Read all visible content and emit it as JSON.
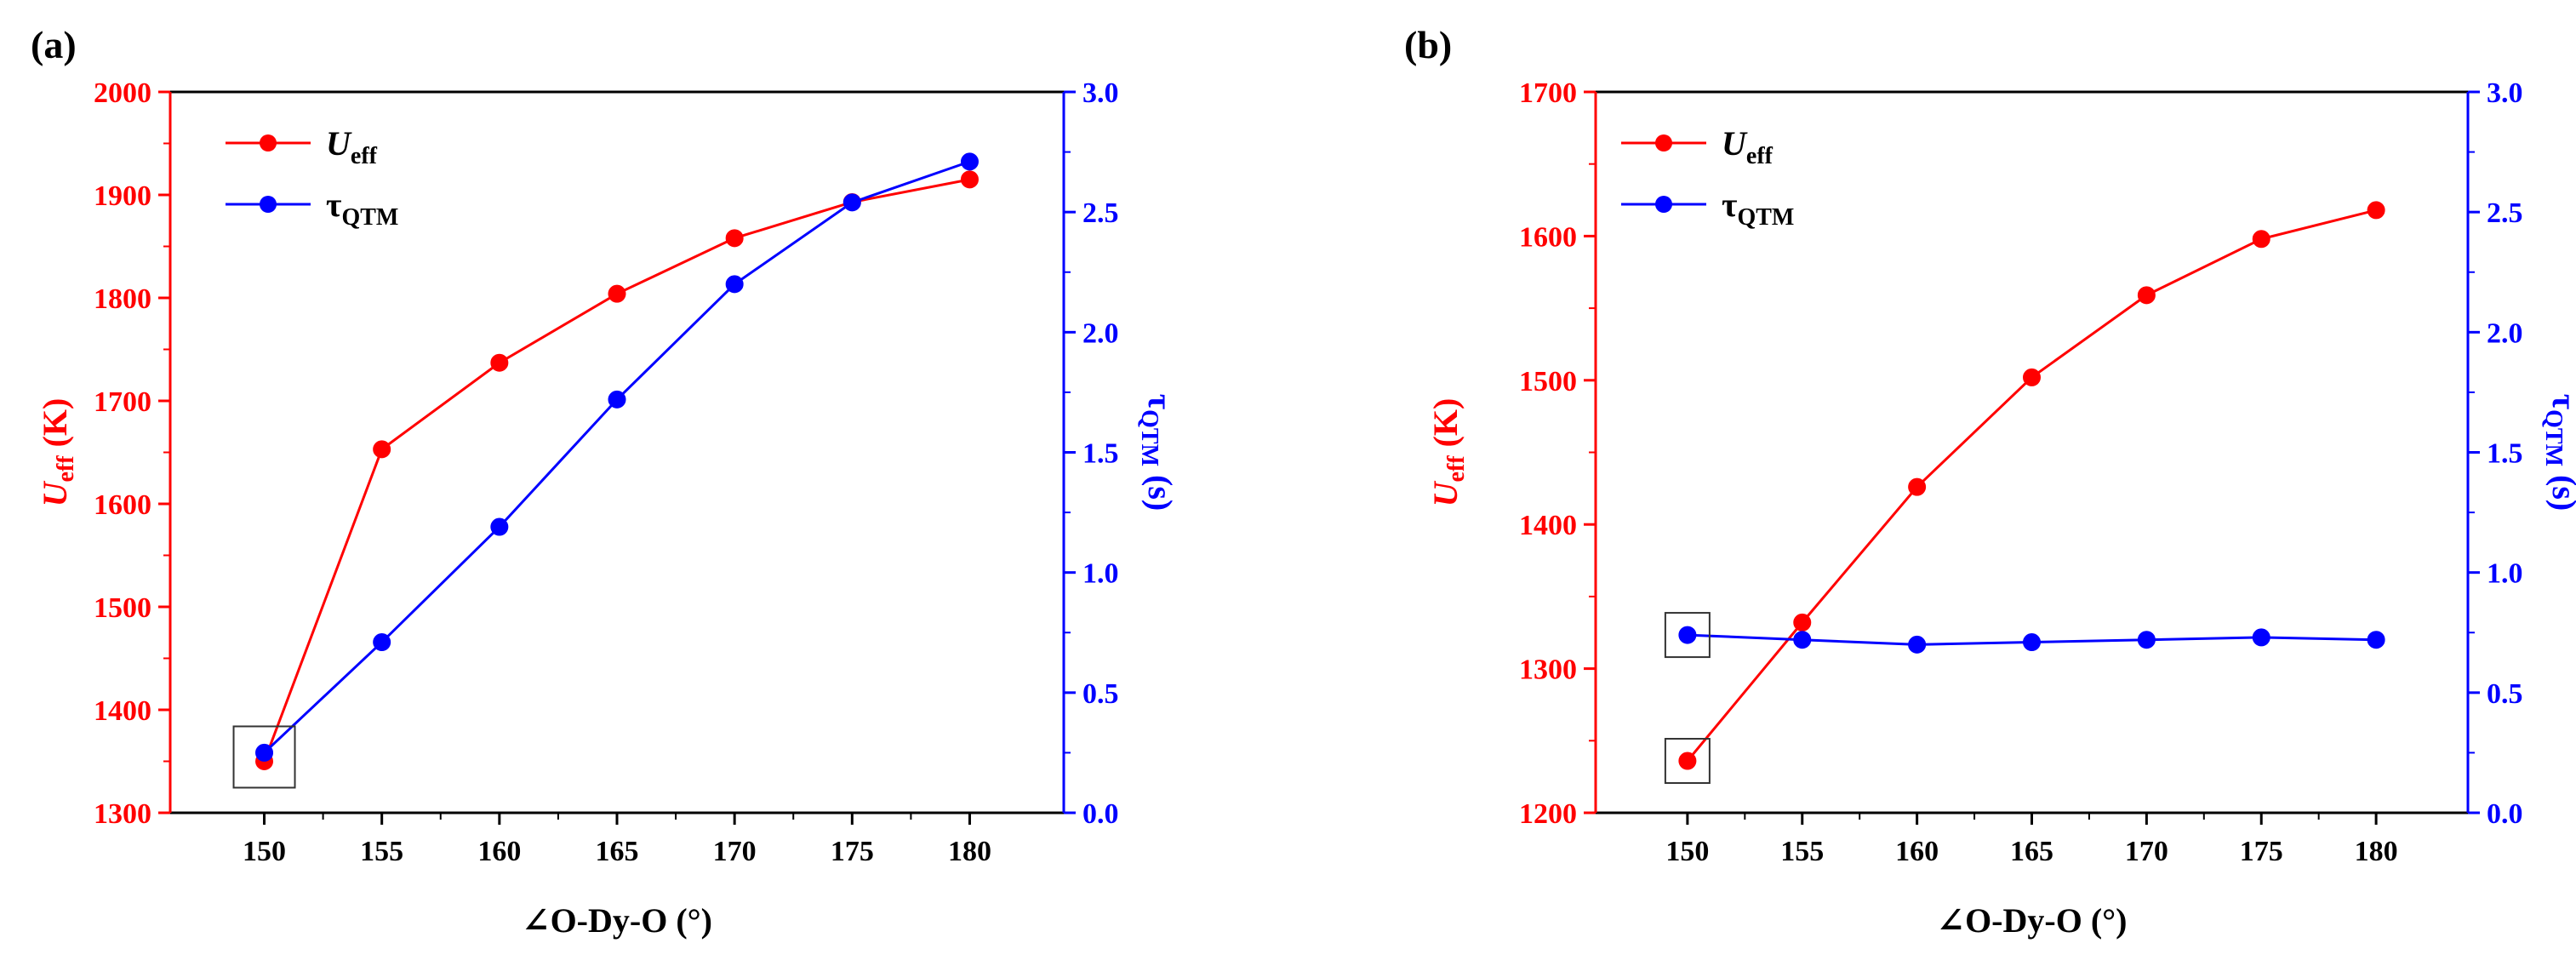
{
  "chart_data": [
    {
      "panel_label": "(a)",
      "type": "line",
      "xlabel": "∠O-Dy-O (°)",
      "x": [
        150,
        155,
        160,
        165,
        170,
        175,
        180
      ],
      "xlim": [
        146,
        184
      ],
      "xticks": [
        150,
        155,
        160,
        165,
        170,
        175,
        180
      ],
      "y_left": {
        "label_main": "U",
        "label_sub": "eff",
        "label_unit": " (K)",
        "color": "#ff0000",
        "lim": [
          1300,
          2000
        ],
        "ticks": [
          1300,
          1400,
          1500,
          1600,
          1700,
          1800,
          1900,
          2000
        ]
      },
      "y_right": {
        "label_main": "τ",
        "label_sub": "QTM",
        "label_unit": " (s)",
        "color": "#0000ff",
        "lim": [
          0.0,
          3.0
        ],
        "ticks": [
          "0.0",
          "0.5",
          "1.0",
          "1.5",
          "2.0",
          "2.5",
          "3.0"
        ]
      },
      "series": [
        {
          "name_main": "U",
          "name_sub": "eff",
          "axis": "left",
          "color": "#ff0000",
          "values": [
            1350,
            1653,
            1737,
            1804,
            1858,
            1893,
            1915
          ]
        },
        {
          "name_main": "τ",
          "name_sub": "QTM",
          "axis": "right",
          "color": "#0000ff",
          "values": [
            0.25,
            0.71,
            1.19,
            1.72,
            2.2,
            2.54,
            2.71
          ]
        }
      ],
      "highlight_x": 150
    },
    {
      "panel_label": "(b)",
      "type": "line",
      "xlabel": "∠O-Dy-O (°)",
      "x": [
        150,
        155,
        160,
        165,
        170,
        175,
        180
      ],
      "xlim": [
        146,
        184
      ],
      "xticks": [
        150,
        155,
        160,
        165,
        170,
        175,
        180
      ],
      "y_left": {
        "label_main": "U",
        "label_sub": "eff",
        "label_unit": " (K)",
        "color": "#ff0000",
        "lim": [
          1200,
          1700
        ],
        "ticks": [
          1200,
          1300,
          1400,
          1500,
          1600,
          1700
        ]
      },
      "y_right": {
        "label_main": "τ",
        "label_sub": "QTM",
        "label_unit": " (s)",
        "color": "#0000ff",
        "lim": [
          0.0,
          3.0
        ],
        "ticks": [
          "0.0",
          "0.5",
          "1.0",
          "1.5",
          "2.0",
          "2.5",
          "3.0"
        ]
      },
      "series": [
        {
          "name_main": "U",
          "name_sub": "eff",
          "axis": "left",
          "color": "#ff0000",
          "values": [
            1236,
            1332,
            1426,
            1502,
            1559,
            1598,
            1618
          ]
        },
        {
          "name_main": "τ",
          "name_sub": "QTM",
          "axis": "right",
          "color": "#0000ff",
          "values": [
            0.74,
            0.72,
            0.7,
            0.71,
            0.72,
            0.73,
            0.72
          ]
        }
      ],
      "highlight_x": 150
    }
  ]
}
